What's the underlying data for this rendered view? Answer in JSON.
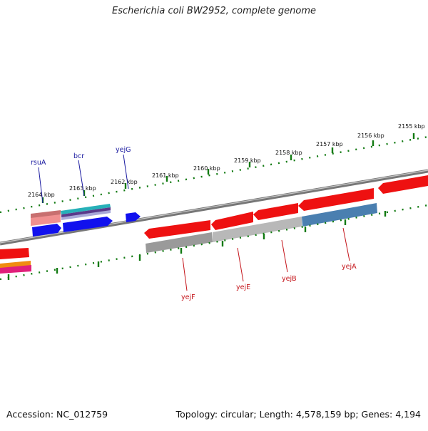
{
  "title": "Escherichia coli BW2952, complete genome",
  "footer": {
    "accession": "Accession: NC_012759",
    "summary": "Topology: circular; Length: 4,578,159 bp; Genes: 4,194"
  },
  "colors": {
    "backbone": "#7a7a7a",
    "tick_green": "#117a11",
    "forward_label": "#1a1aa0",
    "reverse_label": "#c4141a",
    "gene_red": "#ee1111",
    "gene_blue": "#1111ee",
    "gene_steelblue": "#4a7fb0",
    "gene_gray": "#a8a8a8",
    "gene_salmon": "#e87070",
    "gene_teal": "#27b0b8"
  },
  "kbp_labels": [
    {
      "kbp": 2155,
      "text": "2155 kbp"
    },
    {
      "kbp": 2156,
      "text": "2156 kbp"
    },
    {
      "kbp": 2157,
      "text": "2157 kbp"
    },
    {
      "kbp": 2158,
      "text": "2158 kbp"
    },
    {
      "kbp": 2159,
      "text": "2159 kbp"
    },
    {
      "kbp": 2160,
      "text": "2160 kbp"
    },
    {
      "kbp": 2161,
      "text": "2161 kbp"
    },
    {
      "kbp": 2162,
      "text": "2162 kbp"
    },
    {
      "kbp": 2163,
      "text": "2163 kbp"
    },
    {
      "kbp": 2164,
      "text": "2164 kbp"
    }
  ],
  "genes_forward_labels": [
    {
      "name": "rsuA"
    },
    {
      "name": "bcr"
    },
    {
      "name": "yejG"
    }
  ],
  "genes_reverse_labels": [
    {
      "name": "yejF"
    },
    {
      "name": "yejE"
    },
    {
      "name": "yejB"
    },
    {
      "name": "yejA"
    }
  ]
}
